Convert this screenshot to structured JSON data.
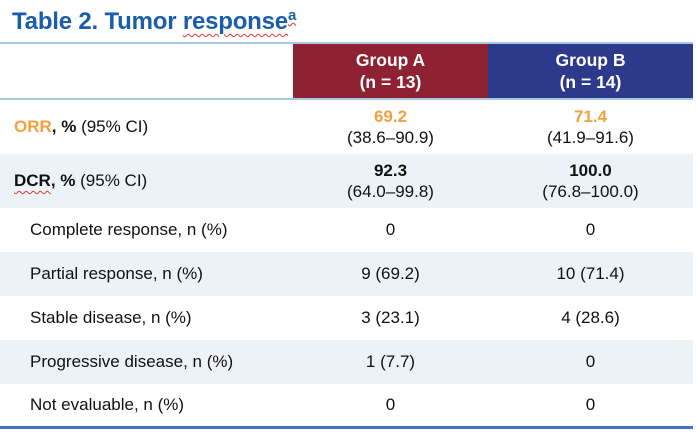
{
  "title": {
    "prefix": "Table 2. Tumor ",
    "misspelled_word": "response",
    "superscript": "a"
  },
  "colors": {
    "title_blue": "#1A5DAB",
    "group_a_header": "#8E2232",
    "group_b_header": "#2D3A8C",
    "orr_accent_orange": "#F5A03C",
    "alt_row_background": "#EDF2F8",
    "light_rule": "#A9C7E2",
    "bottom_rule": "#4472C4",
    "spellcheck_squiggle": "#E03A2B"
  },
  "table": {
    "columns": {
      "group_a": {
        "name": "Group A",
        "n": "(n = 13)"
      },
      "group_b": {
        "name": "Group B",
        "n": "(n = 14)"
      }
    },
    "rows": {
      "orr": {
        "acronym": "ORR",
        "bold_suffix": ", %",
        "suffix": " (95% CI)",
        "group_a": {
          "value": "69.2",
          "ci": "(38.6–90.9)"
        },
        "group_b": {
          "value": "71.4",
          "ci": "(41.9–91.6)"
        }
      },
      "dcr": {
        "acronym": "DCR",
        "bold_suffix": ", %",
        "suffix": " (95% CI)",
        "group_a": {
          "value": "92.3",
          "ci": "(64.0–99.8)"
        },
        "group_b": {
          "value": "100.0",
          "ci": "(76.8–100.0)"
        }
      },
      "complete_response": {
        "label": "Complete response, n (%)",
        "group_a": "0",
        "group_b": "0"
      },
      "partial_response": {
        "label": "Partial response, n (%)",
        "group_a": "9 (69.2)",
        "group_b": "10 (71.4)"
      },
      "stable_disease": {
        "label": "Stable disease, n (%)",
        "group_a": "3 (23.1)",
        "group_b": "4 (28.6)"
      },
      "progressive_disease": {
        "label": "Progressive disease, n (%)",
        "group_a": "1 (7.7)",
        "group_b": "0"
      },
      "not_evaluable": {
        "label": "Not evaluable, n (%)",
        "group_a": "0",
        "group_b": "0"
      }
    }
  }
}
